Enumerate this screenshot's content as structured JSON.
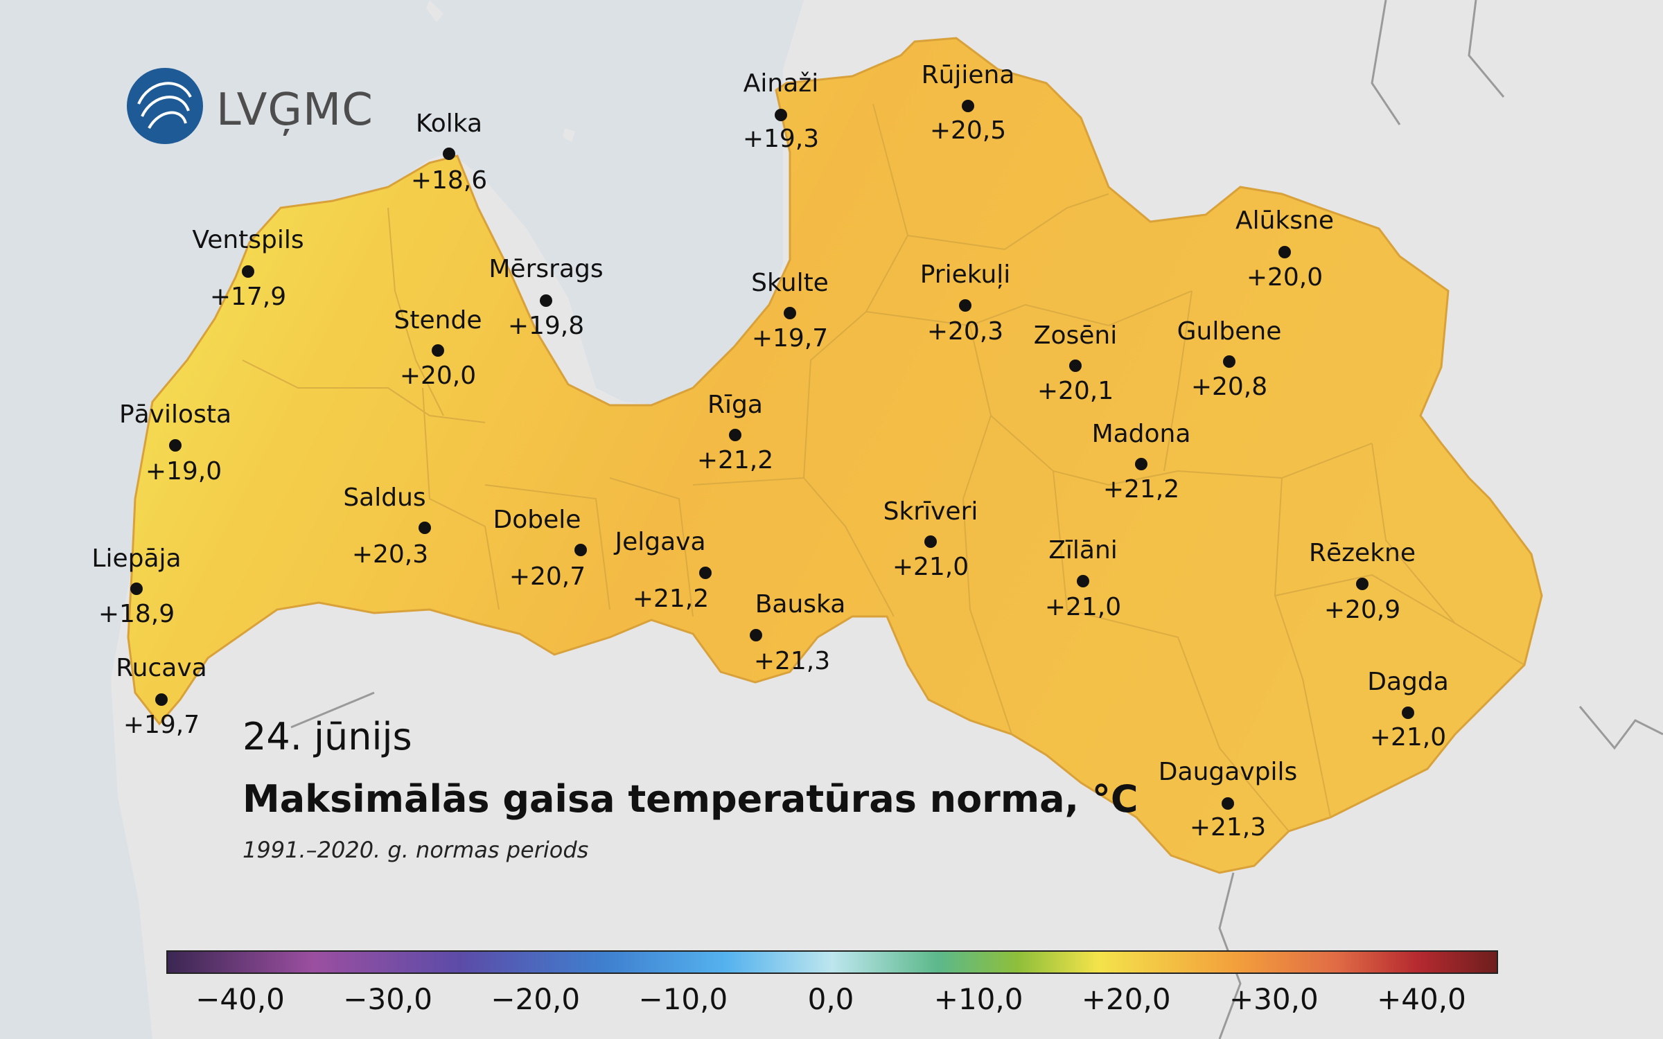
{
  "logo": {
    "text": "LVĢMC"
  },
  "date": "24. jūnijs",
  "title": "Maksimālās gaisa temperatūras norma, °C",
  "subtitle": "1991.–2020. g. normas periods",
  "colors": {
    "sea": "#dce1e6",
    "land": "#e6e6e6",
    "latvia_warm": "#f4be44",
    "latvia_cool": "#f6e85a",
    "logo_blue": "#1e5a96"
  },
  "stations": [
    {
      "name": "Kolka",
      "value": "+18,6"
    },
    {
      "name": "Ventspils",
      "value": "+17,9"
    },
    {
      "name": "Mērsrags",
      "value": "+19,8"
    },
    {
      "name": "Stende",
      "value": "+20,0"
    },
    {
      "name": "Pāvilosta",
      "value": "+19,0"
    },
    {
      "name": "Saldus",
      "value": "+20,3"
    },
    {
      "name": "Dobele",
      "value": "+20,7"
    },
    {
      "name": "Liepāja",
      "value": "+18,9"
    },
    {
      "name": "Rucava",
      "value": "+19,7"
    },
    {
      "name": "Ainaži",
      "value": "+19,3"
    },
    {
      "name": "Rūjiena",
      "value": "+20,5"
    },
    {
      "name": "Skulte",
      "value": "+19,7"
    },
    {
      "name": "Priekuļi",
      "value": "+20,3"
    },
    {
      "name": "Alūksne",
      "value": "+20,0"
    },
    {
      "name": "Zosēni",
      "value": "+20,1"
    },
    {
      "name": "Gulbene",
      "value": "+20,8"
    },
    {
      "name": "Rīga",
      "value": "+21,2"
    },
    {
      "name": "Madona",
      "value": "+21,2"
    },
    {
      "name": "Jelgava",
      "value": "+21,2"
    },
    {
      "name": "Skrīveri",
      "value": "+21,0"
    },
    {
      "name": "Bauska",
      "value": "+21,3"
    },
    {
      "name": "Zīlāni",
      "value": "+21,0"
    },
    {
      "name": "Rēzekne",
      "value": "+20,9"
    },
    {
      "name": "Dagda",
      "value": "+21,0"
    },
    {
      "name": "Daugavpils",
      "value": "+21,3"
    }
  ],
  "colorbar": {
    "min": -45,
    "max": 45,
    "ticks": [
      {
        "value": -40,
        "label": "−40,0"
      },
      {
        "value": -30,
        "label": "−30,0"
      },
      {
        "value": -20,
        "label": "−20,0"
      },
      {
        "value": -10,
        "label": "−10,0"
      },
      {
        "value": 0,
        "label": "0,0"
      },
      {
        "value": 10,
        "label": "+10,0"
      },
      {
        "value": 20,
        "label": "+20,0"
      },
      {
        "value": 30,
        "label": "+30,0"
      },
      {
        "value": 40,
        "label": "+40,0"
      }
    ]
  }
}
